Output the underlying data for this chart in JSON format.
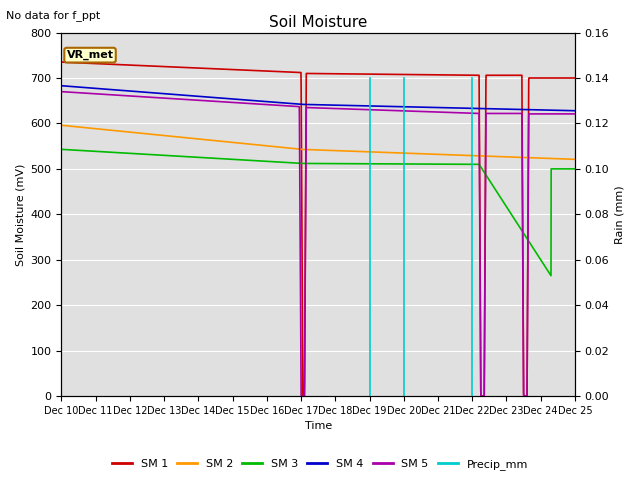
{
  "title": "Soil Moisture",
  "subtitle": "No data for f_ppt",
  "ylabel_left": "Soil Moisture (mV)",
  "ylabel_right": "Rain (mm)",
  "xlabel": "Time",
  "annotation": "VR_met",
  "ylim_left": [
    0,
    800
  ],
  "ylim_right": [
    0.0,
    0.16
  ],
  "yticks_left": [
    0,
    100,
    200,
    300,
    400,
    500,
    600,
    700,
    800
  ],
  "yticks_right": [
    0.0,
    0.02,
    0.04,
    0.06,
    0.08,
    0.1,
    0.12,
    0.14,
    0.16
  ],
  "xtick_labels": [
    "Dec 10",
    "Dec 11",
    "Dec 12",
    "Dec 13",
    "Dec 14",
    "Dec 15",
    "Dec 16",
    "Dec 17",
    "Dec 18",
    "Dec 19",
    "Dec 20",
    "Dec 21",
    "Dec 22",
    "Dec 23",
    "Dec 24",
    "Dec 25"
  ],
  "sm1_color": "#cc0000",
  "sm2_color": "#ff9900",
  "sm3_color": "#00bb00",
  "sm4_color": "#0000cc",
  "sm5_color": "#aa00aa",
  "precip_color": "#00cccc",
  "background_color": "#e0e0e0",
  "grid_color": "#ffffff",
  "figsize": [
    6.4,
    4.8
  ],
  "dpi": 100
}
